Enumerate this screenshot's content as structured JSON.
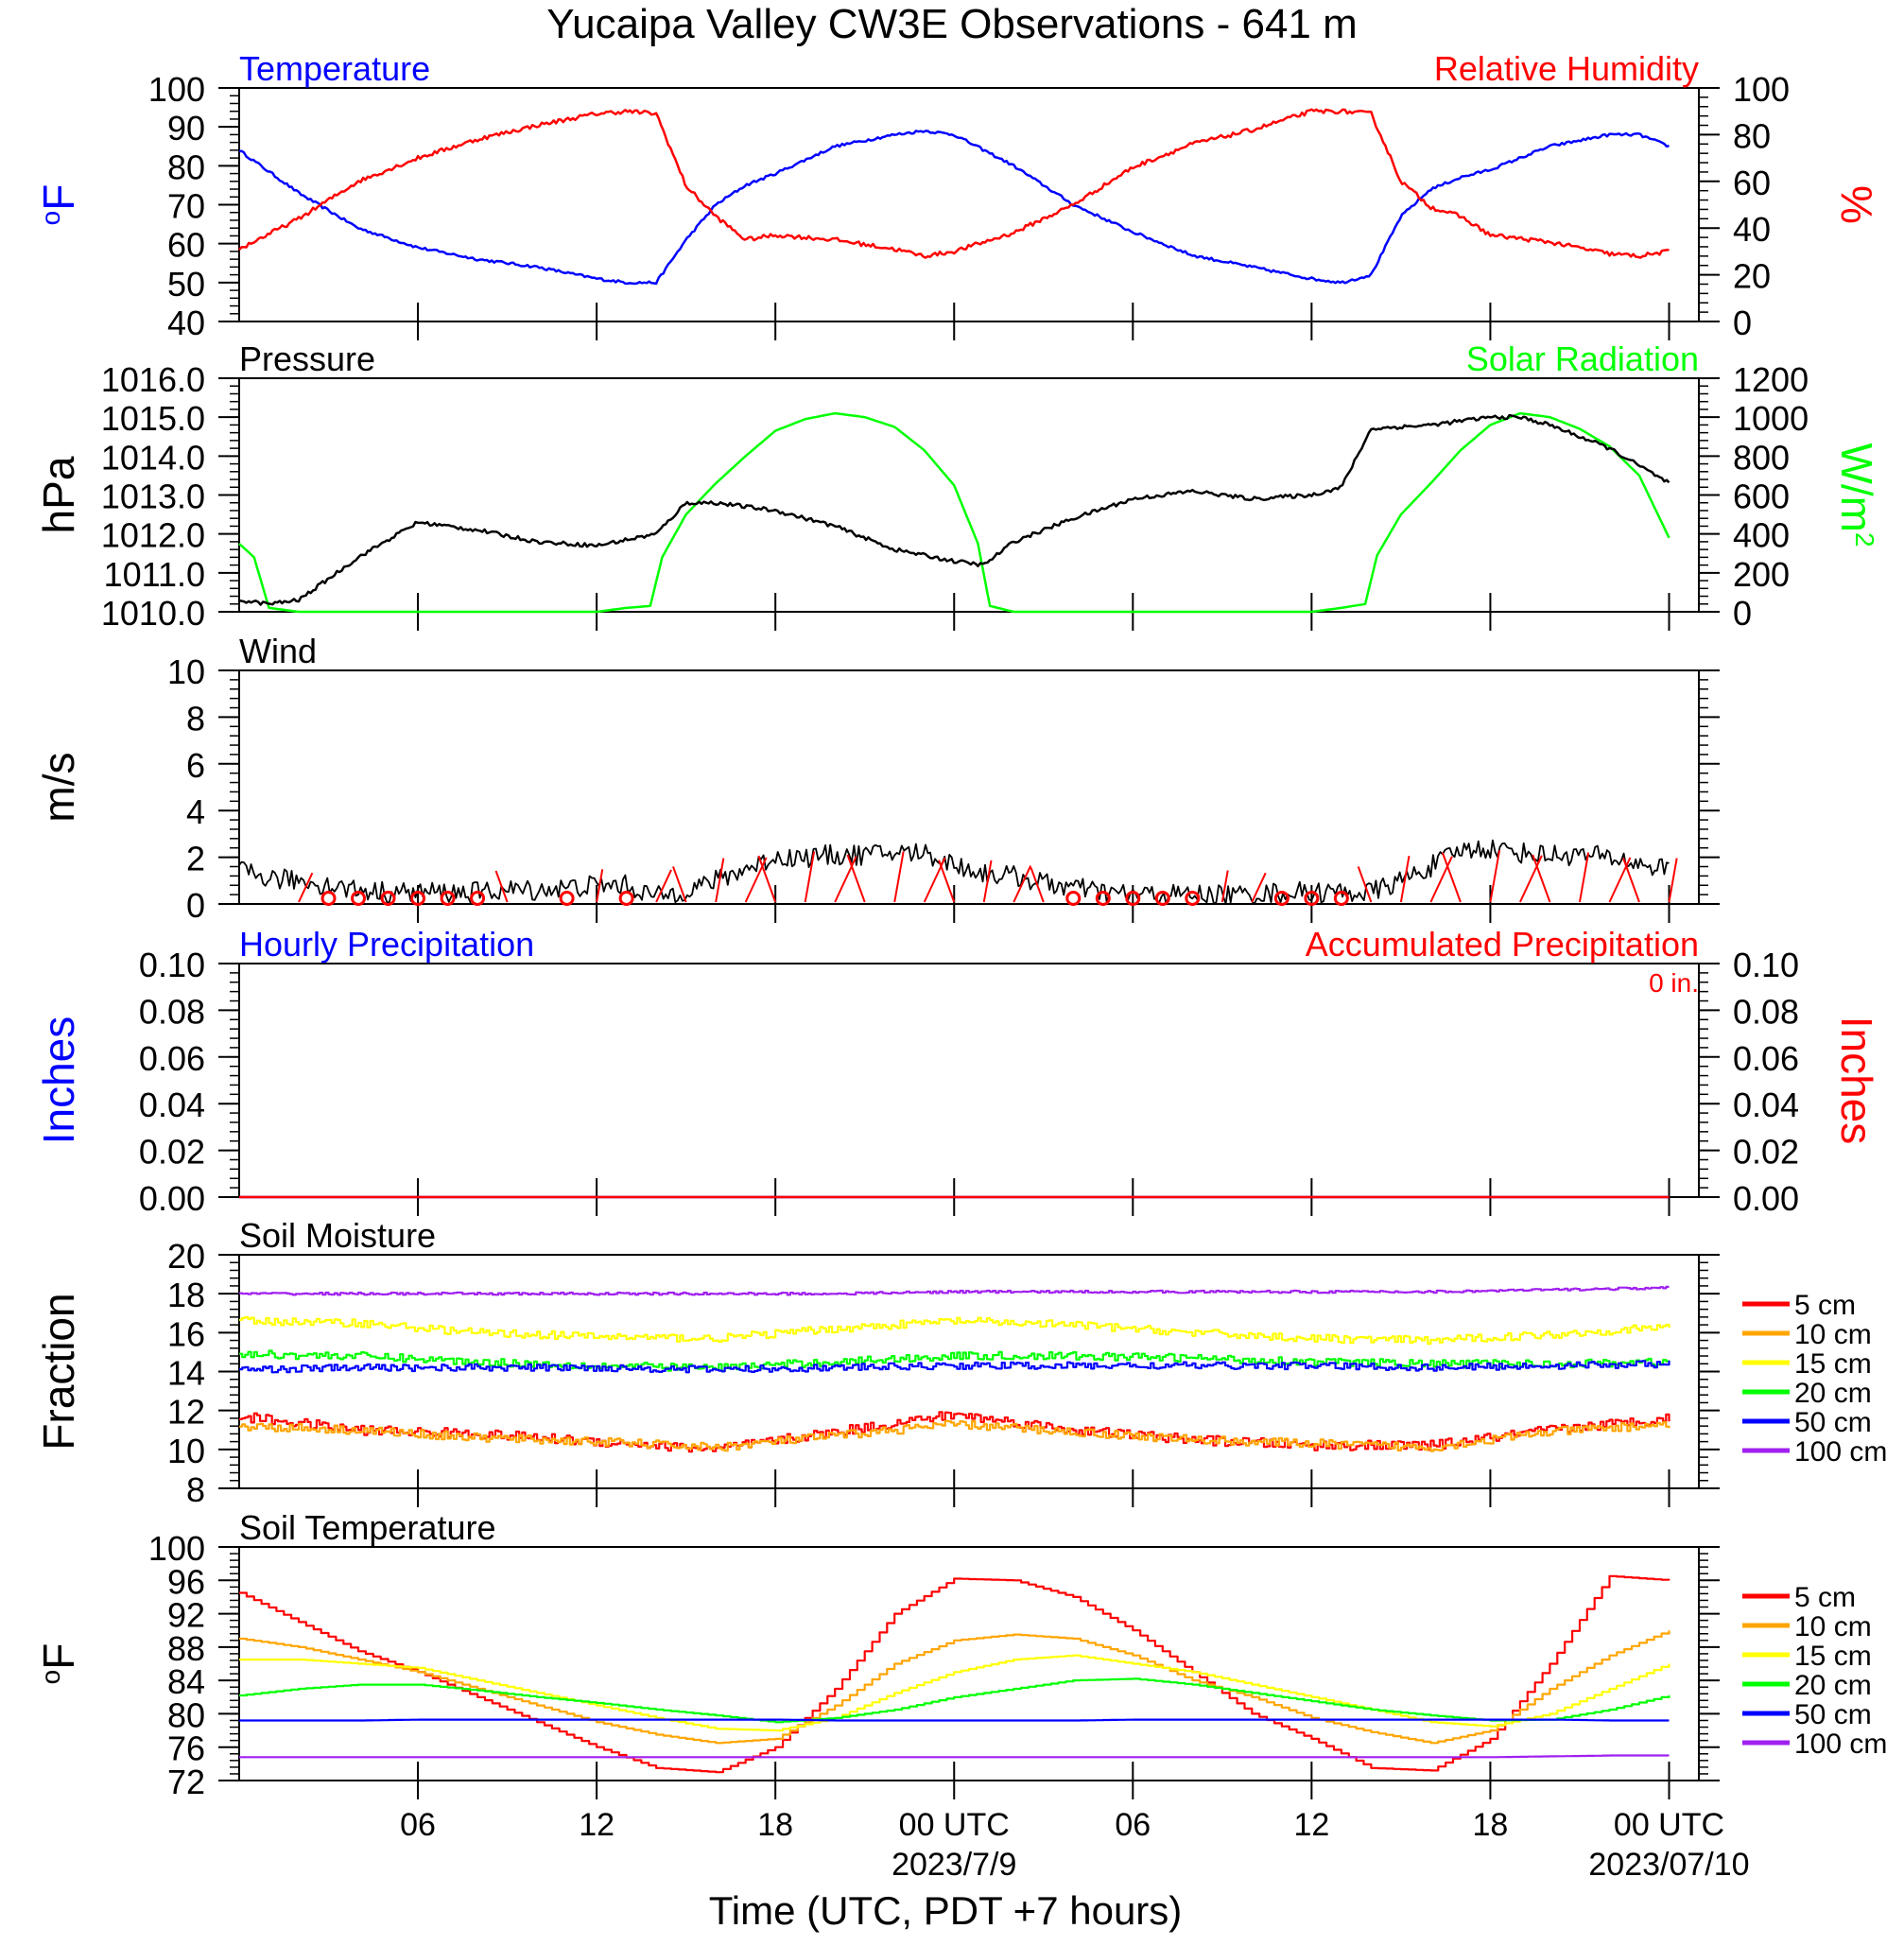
{
  "title": "Yucaipa Valley CW3E Observations - 641 m",
  "xlabel": "Time (UTC, PDT +7 hours)",
  "x_ticks": [
    {
      "hour": 6,
      "label": "06"
    },
    {
      "hour": 12,
      "label": "12"
    },
    {
      "hour": 18,
      "label": "18"
    },
    {
      "hour": 24,
      "label": "00 UTC"
    },
    {
      "hour": 30,
      "label": "06"
    },
    {
      "hour": 36,
      "label": "12"
    },
    {
      "hour": 42,
      "label": "18"
    },
    {
      "hour": 48,
      "label": "00 UTC"
    }
  ],
  "date_labels": [
    "2023/7/9",
    "2023/07/10"
  ],
  "chart_data": [
    {
      "id": "temp_rh",
      "type": "line",
      "left_title": "Temperature",
      "right_title": "Relative Humidity",
      "left_ylabel": "oF",
      "right_ylabel": "%",
      "ylim": [
        40,
        100
      ],
      "yticks": [
        "40",
        "50",
        "60",
        "70",
        "80",
        "90",
        "100"
      ],
      "ylim_right": [
        0,
        100
      ],
      "yticks_right": [
        "0",
        "20",
        "40",
        "60",
        "80",
        "100"
      ],
      "x_hours_utc": [
        0,
        2,
        4,
        6,
        8,
        10,
        12,
        13,
        14,
        15,
        16,
        17,
        18,
        20,
        22,
        23,
        24,
        26,
        28,
        30,
        32,
        34,
        36,
        37,
        38,
        39,
        40,
        41,
        42,
        44,
        46,
        47,
        48
      ],
      "series": [
        {
          "name": "Temperature",
          "axis": "left",
          "color": "#0000ff",
          "values": [
            84,
            73,
            64,
            59,
            56,
            54,
            51,
            50,
            50,
            61,
            70,
            75,
            78,
            85,
            88,
            89,
            88,
            80,
            70,
            63,
            57,
            54,
            51,
            50,
            52,
            67,
            74,
            77,
            79,
            85,
            88,
            88,
            85
          ]
        },
        {
          "name": "Relative Humidity",
          "axis": "right",
          "color": "#ff0000",
          "values": [
            31,
            44,
            60,
            70,
            78,
            84,
            89,
            90,
            89,
            58,
            45,
            35,
            37,
            35,
            31,
            28,
            30,
            38,
            50,
            66,
            76,
            82,
            90,
            90,
            89,
            60,
            49,
            45,
            37,
            34,
            29,
            28,
            30
          ]
        }
      ]
    },
    {
      "id": "pressure_solar",
      "type": "line",
      "left_title": "Pressure",
      "right_title": "Solar Radiation",
      "left_ylabel": "hPa",
      "right_ylabel": "W/m2",
      "ylim": [
        1010,
        1016
      ],
      "yticks": [
        "1010.0",
        "1011.0",
        "1012.0",
        "1013.0",
        "1014.0",
        "1015.0",
        "1016.0"
      ],
      "ylim_right": [
        0,
        1200
      ],
      "yticks_right": [
        "0",
        "200",
        "400",
        "600",
        "800",
        "1000",
        "1200"
      ],
      "x_hours_utc": [
        0,
        1,
        2,
        4,
        6,
        8,
        10,
        12,
        14,
        15,
        16,
        18,
        20,
        22,
        24,
        25,
        26,
        28,
        30,
        32,
        34,
        36,
        37,
        38,
        40,
        42,
        43,
        44,
        46,
        48
      ],
      "series": [
        {
          "name": "Pressure",
          "axis": "left",
          "color": "#000000",
          "values": [
            1010.3,
            1010.2,
            1010.3,
            1011.4,
            1012.3,
            1012.1,
            1011.8,
            1011.7,
            1012.0,
            1012.8,
            1012.8,
            1012.6,
            1012.2,
            1011.6,
            1011.3,
            1011.2,
            1011.8,
            1012.4,
            1012.9,
            1013.1,
            1012.9,
            1013.0,
            1013.2,
            1014.7,
            1014.8,
            1015.0,
            1015.0,
            1014.8,
            1014.2,
            1013.3
          ]
        }
      ],
      "solar": {
        "name": "Solar Radiation",
        "axis": "right",
        "color": "#00ff00",
        "x_hours_utc": [
          0,
          0.5,
          1,
          2,
          3,
          4,
          6,
          8,
          10,
          12,
          13,
          13.8,
          14.2,
          15,
          16,
          17,
          18,
          19,
          20,
          21,
          22,
          23,
          24,
          24.8,
          25.2,
          26,
          28,
          30,
          32,
          34,
          36,
          37,
          37.8,
          38.2,
          39,
          40,
          41,
          42,
          43,
          44,
          45,
          46,
          47,
          48
        ],
        "values": [
          350,
          280,
          20,
          0,
          0,
          0,
          0,
          0,
          0,
          0,
          20,
          30,
          280,
          500,
          660,
          800,
          930,
          990,
          1020,
          1000,
          950,
          830,
          650,
          350,
          30,
          0,
          0,
          0,
          0,
          0,
          0,
          20,
          40,
          290,
          500,
          660,
          830,
          960,
          1020,
          1000,
          940,
          850,
          700,
          380
        ]
      }
    },
    {
      "id": "wind",
      "type": "line",
      "left_title": "Wind",
      "left_ylabel": "m/s",
      "ylim": [
        0,
        10
      ],
      "yticks": [
        "0",
        "2",
        "4",
        "6",
        "8",
        "10"
      ],
      "x_hours_utc": [
        0,
        1,
        2,
        3,
        4,
        5,
        6,
        7,
        8,
        9,
        10,
        11,
        12,
        13,
        14,
        15,
        16,
        17,
        18,
        19,
        20,
        21,
        22,
        23,
        24,
        25,
        26,
        27,
        28,
        29,
        30,
        31,
        32,
        33,
        34,
        35,
        36,
        37,
        38,
        39,
        40,
        41,
        42,
        43,
        44,
        45,
        46,
        47,
        48
      ],
      "series": [
        {
          "name": "Wind",
          "axis": "left",
          "color": "#000000",
          "values": [
            1.4,
            1.1,
            1.0,
            0.8,
            0.6,
            0.5,
            0.5,
            0.5,
            0.5,
            0.6,
            0.6,
            0.7,
            0.8,
            0.8,
            0.3,
            0.6,
            1.0,
            1.5,
            2.0,
            2.0,
            2.1,
            2.1,
            2.2,
            2.2,
            1.7,
            1.3,
            1.2,
            0.9,
            0.7,
            0.5,
            0.4,
            0.4,
            0.4,
            0.4,
            0.4,
            0.5,
            0.5,
            0.5,
            0.5,
            1.0,
            1.6,
            2.3,
            2.4,
            2.2,
            2.1,
            2.1,
            2.0,
            1.7,
            1.5
          ]
        }
      ]
    },
    {
      "id": "precip",
      "type": "line",
      "left_title": "Hourly Precipitation",
      "right_title": "Accumulated Precipitation",
      "accum_label": "0 in.",
      "left_ylabel": "Inches",
      "right_ylabel": "Inches",
      "ylim": [
        0,
        0.1
      ],
      "yticks": [
        "0.00",
        "0.02",
        "0.04",
        "0.06",
        "0.08",
        "0.10"
      ],
      "yticks_right": [
        "0.00",
        "0.02",
        "0.04",
        "0.06",
        "0.08",
        "0.10"
      ],
      "x_hours_utc": [
        0,
        48
      ],
      "series": [
        {
          "name": "Hourly Precipitation",
          "axis": "left",
          "color": "#0000ff",
          "values": [
            0,
            0
          ]
        },
        {
          "name": "Accumulated Precipitation",
          "axis": "right",
          "color": "#ff0000",
          "values": [
            0,
            0
          ]
        }
      ]
    },
    {
      "id": "soil_moisture",
      "type": "line",
      "left_title": "Soil Moisture",
      "left_ylabel": "Fraction",
      "ylim": [
        8,
        20
      ],
      "yticks": [
        "8",
        "10",
        "12",
        "14",
        "16",
        "18",
        "20"
      ],
      "x_hours_utc": [
        0,
        4,
        8,
        12,
        16,
        20,
        24,
        28,
        32,
        36,
        40,
        44,
        48
      ],
      "series": [
        {
          "name": "5 cm",
          "color": "#ff0000",
          "values": [
            11.7,
            11.0,
            10.8,
            10.4,
            10.0,
            10.9,
            11.8,
            11.0,
            10.5,
            10.2,
            10.2,
            11.0,
            11.6
          ]
        },
        {
          "name": "10 cm",
          "color": "#ffa500",
          "values": [
            11.2,
            11.0,
            10.6,
            10.4,
            10.1,
            10.7,
            11.3,
            10.9,
            10.5,
            10.3,
            10.1,
            10.9,
            11.3
          ]
        },
        {
          "name": "15 cm",
          "color": "#ffff00",
          "values": [
            16.6,
            16.5,
            16.0,
            15.8,
            15.7,
            16.2,
            16.6,
            16.4,
            16.0,
            15.7,
            15.6,
            15.9,
            16.3
          ]
        },
        {
          "name": "20 cm",
          "color": "#00ff00",
          "values": [
            14.9,
            14.8,
            14.5,
            14.3,
            14.2,
            14.5,
            14.8,
            14.8,
            14.7,
            14.5,
            14.4,
            14.4,
            14.5
          ]
        },
        {
          "name": "50 cm",
          "color": "#0000ff",
          "values": [
            14.1,
            14.2,
            14.2,
            14.2,
            14.1,
            14.2,
            14.3,
            14.3,
            14.3,
            14.3,
            14.2,
            14.3,
            14.4
          ]
        },
        {
          "name": "100 cm",
          "color": "#a020f0",
          "values": [
            18.0,
            18.0,
            18.0,
            18.0,
            18.0,
            18.0,
            18.1,
            18.1,
            18.1,
            18.1,
            18.1,
            18.2,
            18.3
          ]
        }
      ]
    },
    {
      "id": "soil_temperature",
      "type": "line",
      "left_title": "Soil Temperature",
      "left_ylabel": "oF",
      "ylim": [
        72,
        100
      ],
      "yticks": [
        "72",
        "76",
        "80",
        "84",
        "88",
        "92",
        "96",
        "100"
      ],
      "x_hours_utc": [
        0,
        2,
        4,
        6,
        8,
        10,
        12,
        14,
        16,
        18,
        20,
        22,
        24,
        26,
        28,
        30,
        32,
        34,
        36,
        38,
        40,
        42,
        44,
        46,
        48
      ],
      "series": [
        {
          "name": "5 cm",
          "color": "#ff0000",
          "values": [
            94.5,
            91,
            87.5,
            85,
            82,
            79,
            76,
            73.5,
            73,
            76,
            83,
            92,
            96.2,
            96,
            94,
            90,
            85,
            80,
            77,
            73.5,
            73.2,
            77,
            86,
            96.5,
            96
          ]
        },
        {
          "name": "10 cm",
          "color": "#ffa500",
          "values": [
            89,
            88,
            86.5,
            85,
            83,
            81,
            79,
            77.5,
            76.5,
            77,
            81,
            86,
            88.8,
            89.5,
            89,
            87,
            84,
            82,
            79.5,
            77.8,
            76.5,
            78,
            83,
            87,
            90
          ]
        },
        {
          "name": "15 cm",
          "color": "#ffff00",
          "values": [
            86.5,
            86.5,
            86,
            85.5,
            84,
            82.5,
            81,
            79.5,
            78.2,
            78,
            79.5,
            82.5,
            85,
            86.5,
            87,
            86,
            85,
            83.5,
            82,
            80.5,
            79,
            78.5,
            80,
            83,
            86
          ]
        },
        {
          "name": "20 cm",
          "color": "#00ff00",
          "values": [
            82.2,
            83,
            83.5,
            83.5,
            82.8,
            82,
            81.3,
            80.5,
            79.8,
            79,
            79.5,
            80.5,
            82,
            83,
            84,
            84.2,
            83.5,
            82.5,
            81.5,
            80.5,
            79.8,
            79.2,
            79.3,
            80.5,
            82.2
          ]
        },
        {
          "name": "50 cm",
          "color": "#0000ff",
          "values": [
            79.2,
            79.2,
            79.2,
            79.3,
            79.3,
            79.3,
            79.3,
            79.3,
            79.3,
            79.3,
            79.2,
            79.2,
            79.2,
            79.2,
            79.2,
            79.3,
            79.3,
            79.3,
            79.3,
            79.3,
            79.3,
            79.3,
            79.3,
            79.2,
            79.2
          ]
        },
        {
          "name": "100 cm",
          "color": "#a020f0",
          "values": [
            74.8,
            74.8,
            74.8,
            74.8,
            74.8,
            74.8,
            74.8,
            74.8,
            74.8,
            74.8,
            74.8,
            74.8,
            74.8,
            74.8,
            74.8,
            74.8,
            74.8,
            74.8,
            74.8,
            74.8,
            74.8,
            74.8,
            74.9,
            75,
            75
          ]
        }
      ]
    }
  ],
  "wind_barbs": {
    "calm_hours_utc": [
      3,
      4,
      5,
      6,
      7,
      8,
      11,
      13,
      28,
      29,
      30,
      31,
      32,
      35,
      36,
      37
    ],
    "barbs": [
      {
        "hour": 2,
        "speed": 0.5
      },
      {
        "hour": 9,
        "speed": 0.6
      },
      {
        "hour": 12,
        "speed": 0.6
      },
      {
        "hour": 14,
        "speed": 0.8
      },
      {
        "hour": 15,
        "speed": 1.0
      },
      {
        "hour": 16,
        "speed": 1.6
      },
      {
        "hour": 17,
        "speed": 2.0
      },
      {
        "hour": 18,
        "speed": 2.0
      },
      {
        "hour": 19,
        "speed": 2.2
      },
      {
        "hour": 20,
        "speed": 2.1
      },
      {
        "hour": 21,
        "speed": 2.1
      },
      {
        "hour": 22,
        "speed": 2.2
      },
      {
        "hour": 23,
        "speed": 2.0
      },
      {
        "hour": 24,
        "speed": 1.6
      },
      {
        "hour": 25,
        "speed": 1.4
      },
      {
        "hour": 26,
        "speed": 1.2
      },
      {
        "hour": 27,
        "speed": 0.9
      },
      {
        "hour": 33,
        "speed": 0.5
      },
      {
        "hour": 34,
        "speed": 0.5
      },
      {
        "hour": 38,
        "speed": 1.0
      },
      {
        "hour": 39,
        "speed": 1.8
      },
      {
        "hour": 40,
        "speed": 2.1
      },
      {
        "hour": 41,
        "speed": 2.3
      },
      {
        "hour": 42,
        "speed": 2.3
      },
      {
        "hour": 43,
        "speed": 2.2
      },
      {
        "hour": 44,
        "speed": 2.1
      },
      {
        "hour": 45,
        "speed": 2.1
      },
      {
        "hour": 46,
        "speed": 2.0
      },
      {
        "hour": 47,
        "speed": 1.8
      },
      {
        "hour": 48,
        "speed": 1.6
      }
    ]
  },
  "legend_labels": [
    "5 cm",
    "10 cm",
    "15 cm",
    "20 cm",
    "50 cm",
    "100 cm"
  ],
  "legend_colors": [
    "#ff0000",
    "#ffa500",
    "#ffff00",
    "#00ff00",
    "#0000ff",
    "#a020f0"
  ]
}
